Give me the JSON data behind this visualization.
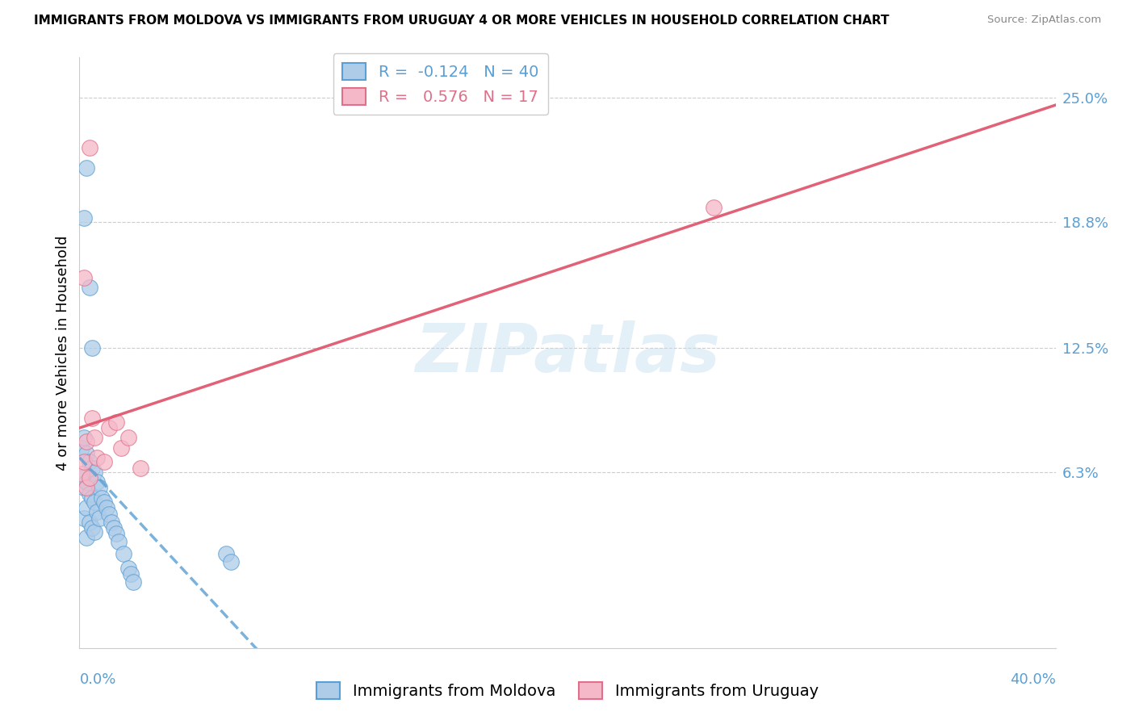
{
  "title": "IMMIGRANTS FROM MOLDOVA VS IMMIGRANTS FROM URUGUAY 4 OR MORE VEHICLES IN HOUSEHOLD CORRELATION CHART",
  "source": "Source: ZipAtlas.com",
  "ylabel": "4 or more Vehicles in Household",
  "color_moldova": "#aecce8",
  "color_uruguay": "#f5b8c8",
  "edge_moldova": "#5a9fd4",
  "edge_uruguay": "#e0708a",
  "line_color_moldova": "#5a9fd4",
  "line_color_uruguay": "#e05870",
  "R_moldova": -0.124,
  "N_moldova": 40,
  "R_uruguay": 0.576,
  "N_uruguay": 17,
  "xlim": [
    0.0,
    0.4
  ],
  "ylim": [
    -0.025,
    0.27
  ],
  "ytick_vals": [
    0.0,
    0.063,
    0.125,
    0.188,
    0.25
  ],
  "ytick_labels": [
    "",
    "6.3%",
    "12.5%",
    "18.8%",
    "25.0%"
  ],
  "moldova_x": [
    0.001,
    0.001,
    0.002,
    0.002,
    0.002,
    0.003,
    0.003,
    0.003,
    0.003,
    0.004,
    0.004,
    0.004,
    0.005,
    0.005,
    0.005,
    0.006,
    0.006,
    0.006,
    0.007,
    0.007,
    0.008,
    0.008,
    0.009,
    0.01,
    0.011,
    0.012,
    0.013,
    0.014,
    0.015,
    0.016,
    0.018,
    0.02,
    0.021,
    0.022,
    0.06,
    0.062,
    0.002,
    0.003,
    0.004,
    0.005
  ],
  "moldova_y": [
    0.075,
    0.06,
    0.08,
    0.055,
    0.04,
    0.072,
    0.058,
    0.045,
    0.03,
    0.068,
    0.052,
    0.038,
    0.065,
    0.05,
    0.035,
    0.063,
    0.048,
    0.033,
    0.058,
    0.043,
    0.055,
    0.04,
    0.05,
    0.048,
    0.045,
    0.042,
    0.038,
    0.035,
    0.032,
    0.028,
    0.022,
    0.015,
    0.012,
    0.008,
    0.022,
    0.018,
    0.19,
    0.215,
    0.155,
    0.125
  ],
  "uruguay_x": [
    0.001,
    0.002,
    0.003,
    0.003,
    0.004,
    0.005,
    0.006,
    0.007,
    0.01,
    0.012,
    0.015,
    0.017,
    0.02,
    0.025,
    0.26,
    0.002,
    0.004
  ],
  "uruguay_y": [
    0.062,
    0.068,
    0.078,
    0.055,
    0.06,
    0.09,
    0.08,
    0.07,
    0.068,
    0.085,
    0.088,
    0.075,
    0.08,
    0.065,
    0.195,
    0.16,
    0.225
  ],
  "watermark_color": "#c5dff0",
  "watermark_alpha": 0.45,
  "grid_color": "#cccccc",
  "title_fontsize": 11,
  "axis_label_fontsize": 13,
  "tick_fontsize": 13,
  "legend_fontsize": 14,
  "marker_size": 200
}
